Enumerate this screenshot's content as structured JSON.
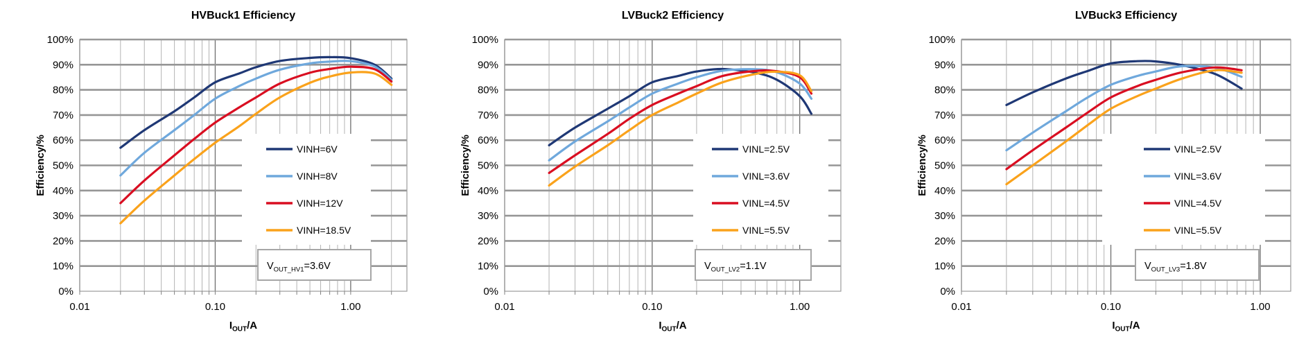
{
  "figure": {
    "background": "#FFFFFF"
  },
  "chart_data": [
    {
      "id": "hvbuck1",
      "type": "line",
      "title": "HVBuck1 Efficiency",
      "ylabel": "Efficiency/%",
      "xlabel": {
        "base": "I",
        "sub": "OUT",
        "suffix": "/A"
      },
      "x_scale": "log",
      "xlim": [
        0.01,
        2.6
      ],
      "ylim": [
        0,
        100
      ],
      "grid": true,
      "legend_position": "center-right",
      "x_ticks": [
        {
          "value": 0.01,
          "label": "0.01"
        },
        {
          "value": 0.1,
          "label": "0.10"
        },
        {
          "value": 1.0,
          "label": "1.00"
        }
      ],
      "y_ticks": [
        "0%",
        "10%",
        "20%",
        "30%",
        "40%",
        "50%",
        "60%",
        "70%",
        "80%",
        "90%",
        "100%"
      ],
      "annotation": {
        "base": "V",
        "sub": "OUT_HV1",
        "suffix": "=3.6V"
      },
      "x": [
        0.02,
        0.03,
        0.05,
        0.07,
        0.1,
        0.15,
        0.2,
        0.3,
        0.5,
        0.7,
        1.0,
        1.5,
        2.0
      ],
      "series": [
        {
          "name": "VINH=6V",
          "color": "#1F3875",
          "values": [
            57,
            64,
            71.5,
            77,
            83,
            86.5,
            89,
            91.5,
            92.7,
            93,
            92.6,
            90,
            84.5
          ]
        },
        {
          "name": "VINH=8V",
          "color": "#6FA8DC",
          "values": [
            46,
            55,
            64,
            70,
            76.5,
            81.5,
            84.5,
            88,
            90.5,
            91.2,
            91.4,
            89.3,
            84
          ]
        },
        {
          "name": "VINH=12V",
          "color": "#D90E21",
          "values": [
            35,
            44,
            54,
            60.5,
            67,
            73,
            77,
            82.5,
            86.8,
            88.3,
            89.2,
            88.2,
            83.3
          ]
        },
        {
          "name": "VINH=18.5V",
          "color": "#FAA21B",
          "values": [
            27,
            36,
            46,
            52.5,
            59,
            65.5,
            70.5,
            77,
            82.8,
            85.3,
            86.9,
            86.5,
            82
          ]
        }
      ]
    },
    {
      "id": "lvbuck2",
      "type": "line",
      "title": "LVBuck2 Efficiency",
      "ylabel": "Efficiency/%",
      "xlabel": {
        "base": "I",
        "sub": "OUT",
        "suffix": "/A"
      },
      "x_scale": "log",
      "xlim": [
        0.01,
        1.9
      ],
      "ylim": [
        0,
        100
      ],
      "grid": true,
      "legend_position": "center-right",
      "x_ticks": [
        {
          "value": 0.01,
          "label": "0.01"
        },
        {
          "value": 0.1,
          "label": "0.10"
        },
        {
          "value": 1.0,
          "label": "1.00"
        }
      ],
      "y_ticks": [
        "0%",
        "10%",
        "20%",
        "30%",
        "40%",
        "50%",
        "60%",
        "70%",
        "80%",
        "90%",
        "100%"
      ],
      "annotation": {
        "base": "V",
        "sub": "OUT_LV2",
        "suffix": "=1.1V"
      },
      "x": [
        0.02,
        0.03,
        0.05,
        0.07,
        0.1,
        0.15,
        0.2,
        0.3,
        0.5,
        0.7,
        1.0,
        1.2
      ],
      "series": [
        {
          "name": "VINL=2.5V",
          "color": "#1F3875",
          "values": [
            58,
            65,
            72.5,
            77.5,
            83,
            85.5,
            87.3,
            88.3,
            86.8,
            84,
            77.5,
            70.5
          ]
        },
        {
          "name": "VINL=3.6V",
          "color": "#6FA8DC",
          "values": [
            52,
            59.5,
            67.5,
            73,
            78.5,
            82.5,
            85,
            87.6,
            88.2,
            87,
            82.5,
            76.5
          ]
        },
        {
          "name": "VINL=4.5V",
          "color": "#D90E21",
          "values": [
            47,
            54,
            62.5,
            68.5,
            74,
            78.5,
            81.5,
            85.5,
            87.5,
            87.4,
            85,
            78.5
          ]
        },
        {
          "name": "VINL=5.5V",
          "color": "#FAA21B",
          "values": [
            42,
            49.5,
            58,
            64,
            70,
            75,
            78.5,
            83,
            86.3,
            87.2,
            85.8,
            79.5
          ]
        }
      ]
    },
    {
      "id": "lvbuck3",
      "type": "line",
      "title": "LVBuck3 Efficiency",
      "ylabel": "Efficiency/%",
      "xlabel": {
        "base": "I",
        "sub": "OUT",
        "suffix": "/A"
      },
      "x_scale": "log",
      "xlim": [
        0.01,
        1.6
      ],
      "ylim": [
        0,
        100
      ],
      "grid": true,
      "legend_position": "center-right",
      "x_ticks": [
        {
          "value": 0.01,
          "label": "0.01"
        },
        {
          "value": 0.1,
          "label": "0.10"
        },
        {
          "value": 1.0,
          "label": "1.00"
        }
      ],
      "y_ticks": [
        "0%",
        "10%",
        "20%",
        "30%",
        "40%",
        "50%",
        "60%",
        "70%",
        "80%",
        "90%",
        "100%"
      ],
      "annotation": {
        "base": "V",
        "sub": "OUT_LV3",
        "suffix": "=1.8V"
      },
      "x": [
        0.02,
        0.03,
        0.05,
        0.07,
        0.1,
        0.15,
        0.2,
        0.3,
        0.5,
        0.75
      ],
      "series": [
        {
          "name": "VINL=2.5V",
          "color": "#1F3875",
          "values": [
            74,
            79,
            84.5,
            87.5,
            90.5,
            91.4,
            91.3,
            89.8,
            86.3,
            80.5
          ]
        },
        {
          "name": "VINL=3.6V",
          "color": "#6FA8DC",
          "values": [
            56,
            63,
            71.5,
            77,
            82,
            85.5,
            87.3,
            89.4,
            88.8,
            85.2
          ]
        },
        {
          "name": "VINL=4.5V",
          "color": "#D90E21",
          "values": [
            48.5,
            56,
            65,
            71,
            77,
            81.5,
            84,
            87,
            88.9,
            87.8
          ]
        },
        {
          "name": "VINL=5.5V",
          "color": "#FAA21B",
          "values": [
            42.5,
            50,
            59.5,
            66,
            72.5,
            77.5,
            80.5,
            84.5,
            87.8,
            86.8
          ]
        }
      ]
    }
  ],
  "style": {
    "grid_major_h_color": "#969696",
    "grid_minor_v_color": "#B3B3B3",
    "grid_major_v_color": "#6E6E6E",
    "frame_color": "#9B9B9B",
    "annotation_border_color": "#A6A6A6",
    "text_color": "#000000"
  }
}
